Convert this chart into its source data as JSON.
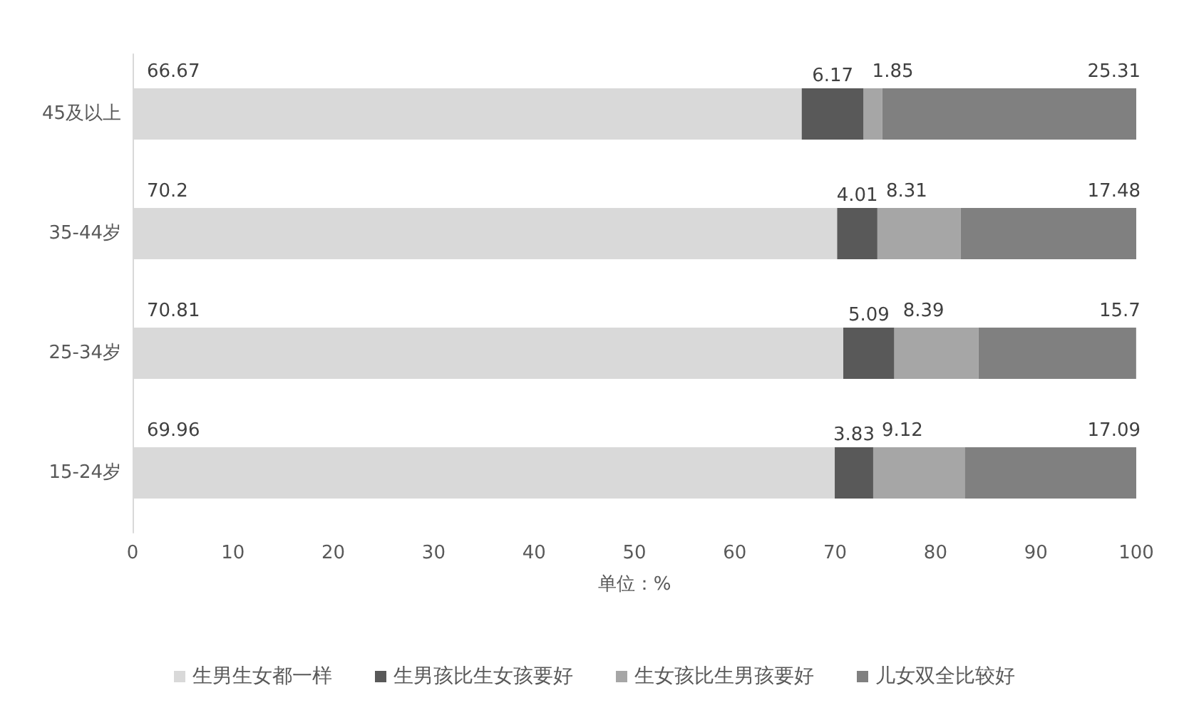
{
  "chart_data": {
    "type": "bar",
    "orientation": "horizontal",
    "stacked": true,
    "xlabel": "单位：%",
    "categories": [
      "45及以上",
      "35-44岁",
      "25-34岁",
      "15-24岁"
    ],
    "series": [
      {
        "name": "生男生女都一样",
        "color": "#d9d9d9",
        "values": [
          66.67,
          70.2,
          70.81,
          69.96
        ]
      },
      {
        "name": "生男孩比生女孩要好",
        "color": "#595959",
        "values": [
          6.17,
          4.01,
          5.09,
          3.83
        ]
      },
      {
        "name": "生女孩比生男孩要好",
        "color": "#a6a6a6",
        "values": [
          1.85,
          8.31,
          8.39,
          9.12
        ]
      },
      {
        "name": "儿女双全比较好",
        "color": "#808080",
        "values": [
          25.31,
          17.48,
          15.7,
          17.09
        ]
      }
    ],
    "xlim": [
      0,
      100
    ],
    "xticks": [
      0,
      10,
      20,
      30,
      40,
      50,
      60,
      70,
      80,
      90,
      100
    ],
    "data_labels": true,
    "grid": false,
    "legend": "bottom"
  }
}
